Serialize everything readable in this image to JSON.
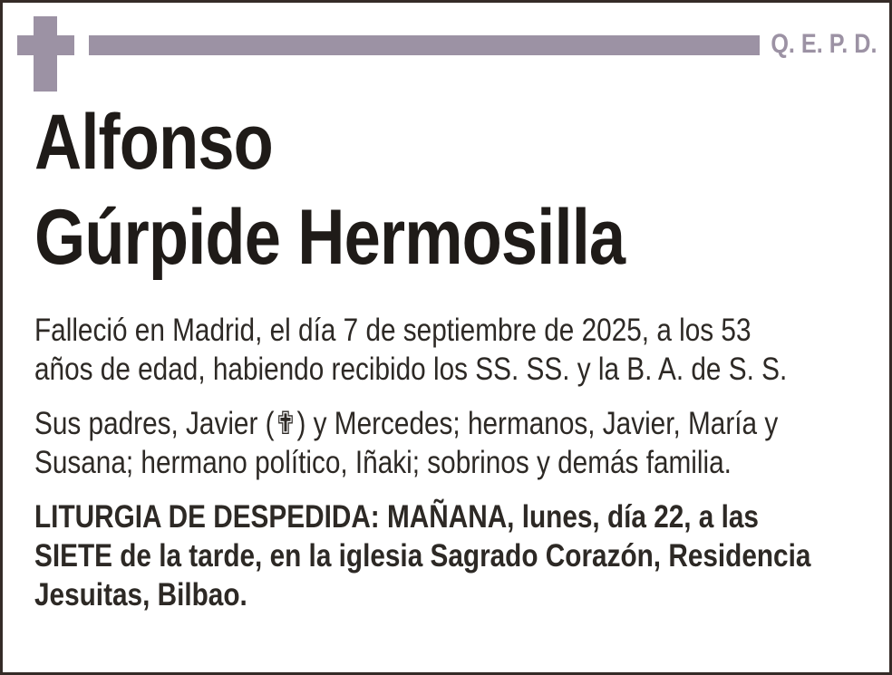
{
  "colors": {
    "accent_mauve": "#9c92a4",
    "title_text": "#1f1b18",
    "body_text": "#2d2925",
    "border": "#352b27",
    "background": "#ffffff"
  },
  "header": {
    "cross_icon": "latin-cross",
    "qepd_label": "Q. E. P. D."
  },
  "title": {
    "lines": [
      "Alfonso",
      "Gúrpide Hermosilla"
    ]
  },
  "paragraphs": {
    "death_notice": {
      "lines": [
        "Falleció en Madrid, el día 7 de septiembre de 2025, a los 53",
        "años de edad, habiendo recibido los SS. SS. y la B. A. de S. S."
      ]
    },
    "family": {
      "lines": [
        "Sus padres, Javier (✟) y Mercedes; hermanos, Javier, María y",
        "Susana; hermano político, Iñaki; sobrinos y demás familia."
      ]
    },
    "liturgy": {
      "lines": [
        "LITURGIA DE DESPEDIDA: MAÑANA, lunes, día 22, a las",
        "SIETE de la tarde, en la iglesia Sagrado Corazón, Residencia",
        "Jesuitas, Bilbao."
      ]
    }
  }
}
